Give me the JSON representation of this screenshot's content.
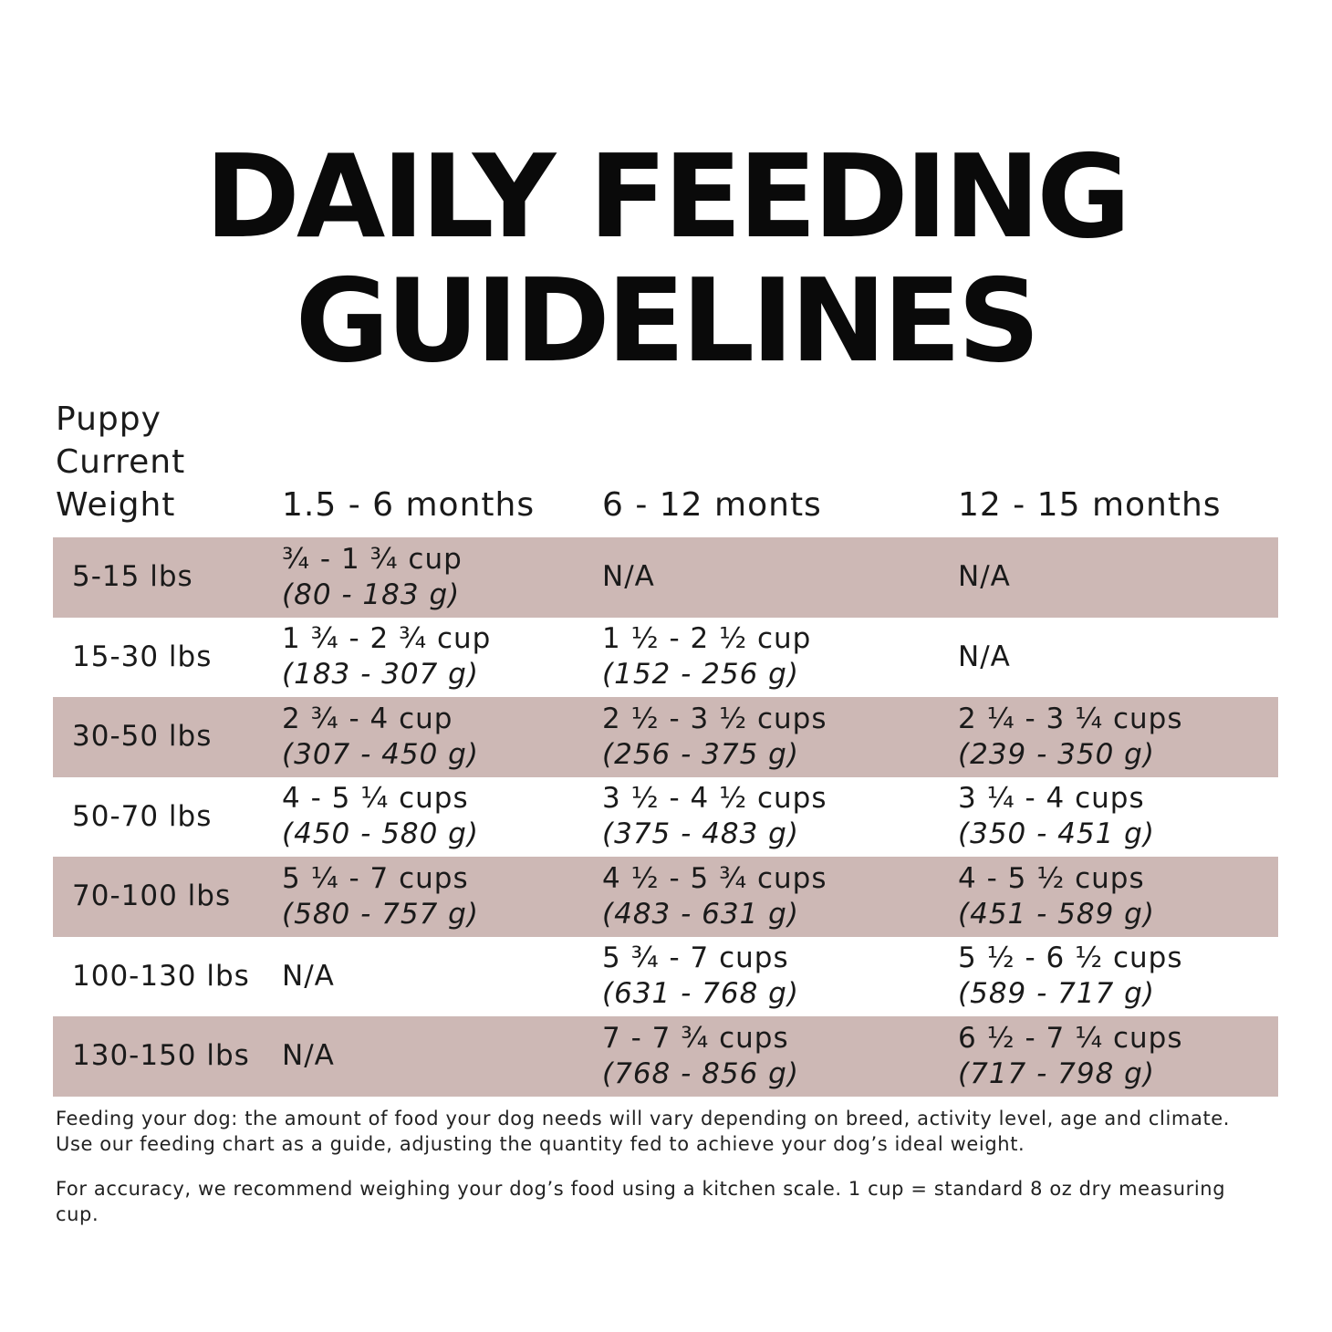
{
  "title": {
    "line1": "DAILY FEEDING",
    "line2": "GUIDELINES"
  },
  "header": {
    "weight_label": [
      "Puppy",
      "Current",
      "Weight"
    ],
    "columns": [
      "1.5 - 6 months",
      "6 - 12 monts",
      "12 - 15 months"
    ]
  },
  "rows": [
    {
      "weight": "5-15 lbs",
      "cells": [
        {
          "cups": "¾ - 1 ¾ cup",
          "grams": "(80 - 183 g)"
        },
        {
          "cups": "N/A",
          "grams": ""
        },
        {
          "cups": "N/A",
          "grams": ""
        }
      ]
    },
    {
      "weight": "15-30 lbs",
      "cells": [
        {
          "cups": "1 ¾ - 2 ¾ cup",
          "grams": "(183 - 307 g)"
        },
        {
          "cups": "1 ½ - 2 ½ cup",
          "grams": "(152 - 256 g)"
        },
        {
          "cups": "N/A",
          "grams": ""
        }
      ]
    },
    {
      "weight": "30-50 lbs",
      "cells": [
        {
          "cups": "2 ¾ - 4 cup",
          "grams": "(307 - 450 g)"
        },
        {
          "cups": "2 ½ - 3 ½ cups",
          "grams": "(256 - 375 g)"
        },
        {
          "cups": "2 ¼ - 3 ¼ cups",
          "grams": "(239 - 350 g)"
        }
      ]
    },
    {
      "weight": "50-70 lbs",
      "cells": [
        {
          "cups": "4 - 5 ¼ cups",
          "grams": "(450 - 580 g)"
        },
        {
          "cups": "3 ½ - 4 ½ cups",
          "grams": "(375 - 483 g)"
        },
        {
          "cups": "3 ¼  - 4 cups",
          "grams": "(350 - 451 g)"
        }
      ]
    },
    {
      "weight": "70-100 lbs",
      "cells": [
        {
          "cups": "5 ¼ - 7 cups",
          "grams": "(580 - 757 g)"
        },
        {
          "cups": "4 ½ - 5 ¾ cups",
          "grams": "(483 - 631 g)"
        },
        {
          "cups": "4 - 5 ½ cups",
          "grams": "(451 - 589 g)"
        }
      ]
    },
    {
      "weight": "100-130 lbs",
      "cells": [
        {
          "cups": "N/A",
          "grams": ""
        },
        {
          "cups": "5 ¾ - 7 cups",
          "grams": "(631 - 768 g)"
        },
        {
          "cups": "5 ½ - 6 ½ cups",
          "grams": "(589 - 717 g)"
        }
      ]
    },
    {
      "weight": "130-150 lbs",
      "cells": [
        {
          "cups": "N/A",
          "grams": ""
        },
        {
          "cups": "7 - 7 ¾ cups",
          "grams": "(768 - 856 g)"
        },
        {
          "cups": "6 ½ - 7 ¼ cups",
          "grams": "(717 - 798 g)"
        }
      ]
    }
  ],
  "notes": [
    "Feeding your dog: the amount of food your dog needs will vary depending on breed, activity level, age and climate. Use our feeding chart as a guide, adjusting the quantity fed to achieve your dog’s ideal weight.",
    "For accuracy, we recommend weighing your dog’s food using a kitchen scale. 1 cup = standard 8 oz dry measuring cup."
  ],
  "colors": {
    "row_shade": "#cdb8b5",
    "text": "#1a1a1a",
    "title": "#0a0a0a"
  }
}
